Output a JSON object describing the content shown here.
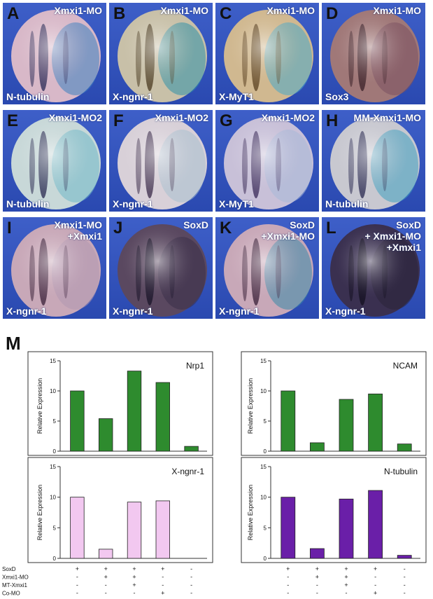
{
  "figure_label": "M",
  "panels": [
    {
      "letter": "A",
      "title": "Xmxi1-MO",
      "marker": "N-tubulin",
      "stain": "#2a2a55",
      "blue": "#3a7fc0",
      "embryo": "#d8b8c8"
    },
    {
      "letter": "B",
      "title": "Xmxi1-MO",
      "marker": "X-ngnr-1",
      "stain": "#4a3a20",
      "blue": "#2f8fa8",
      "embryo": "#c8c0a8"
    },
    {
      "letter": "C",
      "title": "Xmxi1-MO",
      "marker": "X-MyT1",
      "stain": "#5a4020",
      "blue": "#48a8c8",
      "embryo": "#d0b890"
    },
    {
      "letter": "D",
      "title": "Xmxi1-MO",
      "marker": "Sox3",
      "stain": "#3a2028",
      "blue": "#7a5060",
      "embryo": "#a07878"
    },
    {
      "letter": "E",
      "title": "Xmxi1-MO2",
      "marker": "N-tubulin",
      "stain": "#2a2a50",
      "blue": "#70b8c8",
      "embryo": "#c8d8d8"
    },
    {
      "letter": "F",
      "title": "Xmxi1-MO2",
      "marker": "X-ngnr-1",
      "stain": "#3a2a48",
      "blue": "#a8c0d0",
      "embryo": "#d8d0d8"
    },
    {
      "letter": "G",
      "title": "Xmxi1-MO2",
      "marker": "X-MyT1",
      "stain": "#3a2a58",
      "blue": "#a8b8d8",
      "embryo": "#c8c0d8"
    },
    {
      "letter": "H",
      "title": "MM-Xmxi1-MO",
      "marker": "N-tubulin",
      "stain": "#2a2a50",
      "blue": "#40a0c0",
      "embryo": "#c8c8d0"
    },
    {
      "letter": "I",
      "title": "Xmxi1-MO\n+Xmxi1",
      "marker": "X-ngnr-1",
      "stain": "#3a2038",
      "blue": "#b098b0",
      "embryo": "#c8a8b8"
    },
    {
      "letter": "J",
      "title": "SoxD",
      "marker": "X-ngnr-1",
      "stain": "#1a1428",
      "blue": "#3a3048",
      "embryo": "#5a4860"
    },
    {
      "letter": "K",
      "title": "SoxD\n+Xmxi1-MO",
      "marker": "X-ngnr-1",
      "stain": "#3a2038",
      "blue": "#3888a8",
      "embryo": "#c8a8b8"
    },
    {
      "letter": "L",
      "title": "SoxD\n+ Xmxi1-MO\n+Xmxi1",
      "marker": "X-ngnr-1",
      "stain": "#141020",
      "blue": "#2a2438",
      "embryo": "#3a3050"
    }
  ],
  "chart_data": [
    {
      "type": "bar",
      "title": "Nrp1",
      "ylabel": "Relative Expression",
      "ylim": [
        0,
        15
      ],
      "yticks": [
        0,
        5,
        10,
        15
      ],
      "values": [
        10,
        5.4,
        13.3,
        11.4,
        0.8
      ],
      "color": "#2e8b2e"
    },
    {
      "type": "bar",
      "title": "NCAM",
      "ylabel": "Relative Expression",
      "ylim": [
        0,
        15
      ],
      "yticks": [
        0,
        5,
        10,
        15
      ],
      "values": [
        10,
        1.4,
        8.6,
        9.5,
        1.2
      ],
      "color": "#2e8b2e"
    },
    {
      "type": "bar",
      "title": "X-ngnr-1",
      "ylabel": "Relative Expression",
      "ylim": [
        0,
        15
      ],
      "yticks": [
        0,
        5,
        10,
        15
      ],
      "values": [
        10,
        1.5,
        9.2,
        9.4,
        0
      ],
      "color": "#f2c8f0"
    },
    {
      "type": "bar",
      "title": "N-tubulin",
      "ylabel": "Relative Expression",
      "ylim": [
        0,
        15
      ],
      "yticks": [
        0,
        5,
        10,
        15
      ],
      "values": [
        10,
        1.6,
        9.7,
        11.1,
        0.5
      ],
      "color": "#6a1fa8"
    }
  ],
  "conditions": {
    "rows": [
      {
        "label": "SoxD",
        "signs": [
          "+",
          "+",
          "+",
          "+",
          "-"
        ]
      },
      {
        "label": "Xmxi1-MO",
        "signs": [
          "-",
          "+",
          "+",
          "-",
          "-"
        ]
      },
      {
        "label": "MT-Xmxi1",
        "signs": [
          "-",
          "-",
          "+",
          "-",
          "-"
        ]
      },
      {
        "label": "Co-MO",
        "signs": [
          "-",
          "-",
          "-",
          "+",
          "-"
        ]
      }
    ]
  }
}
